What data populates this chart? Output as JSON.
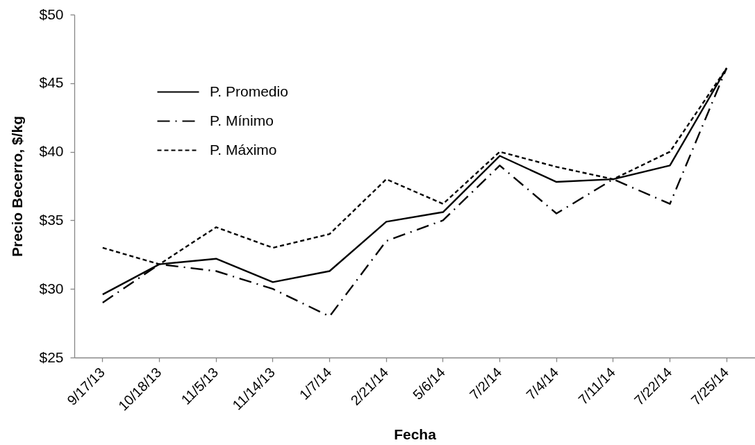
{
  "chart_data": {
    "type": "line",
    "xlabel": "Fecha",
    "ylabel": "Precio Becerro, $/kg",
    "categories": [
      "9/17/13",
      "10/18/13",
      "11/5/13",
      "11/14/13",
      "1/7/14",
      "2/21/14",
      "5/6/14",
      "7/2/14",
      "7/4/14",
      "7/11/14",
      "7/22/14",
      "7/25/14"
    ],
    "series": [
      {
        "name": "P. Promedio",
        "color": "#000000",
        "line_style": "solid",
        "values": [
          29.6,
          31.8,
          32.2,
          30.5,
          31.3,
          34.9,
          35.6,
          39.7,
          37.8,
          38.0,
          39.0,
          46.1
        ]
      },
      {
        "name": "P. Mínimo",
        "color": "#000000",
        "line_style": "dashdot",
        "values": [
          29.0,
          31.8,
          31.3,
          30.0,
          28.0,
          33.5,
          35.0,
          39.0,
          35.5,
          38.0,
          36.2,
          46.1
        ]
      },
      {
        "name": "P. Máximo",
        "color": "#000000",
        "line_style": "dashed",
        "values": [
          33.0,
          31.8,
          34.5,
          33.0,
          34.0,
          38.0,
          36.2,
          40.0,
          38.9,
          38.0,
          40.0,
          46.1
        ]
      }
    ],
    "ylim": [
      25,
      50
    ],
    "yticks": [
      {
        "value": 25,
        "label": "$25"
      },
      {
        "value": 30,
        "label": "$30"
      },
      {
        "value": 35,
        "label": "$35"
      },
      {
        "value": 40,
        "label": "$40"
      },
      {
        "value": 45,
        "label": "$45"
      },
      {
        "value": 50,
        "label": "$50"
      }
    ],
    "legend": "top left"
  }
}
